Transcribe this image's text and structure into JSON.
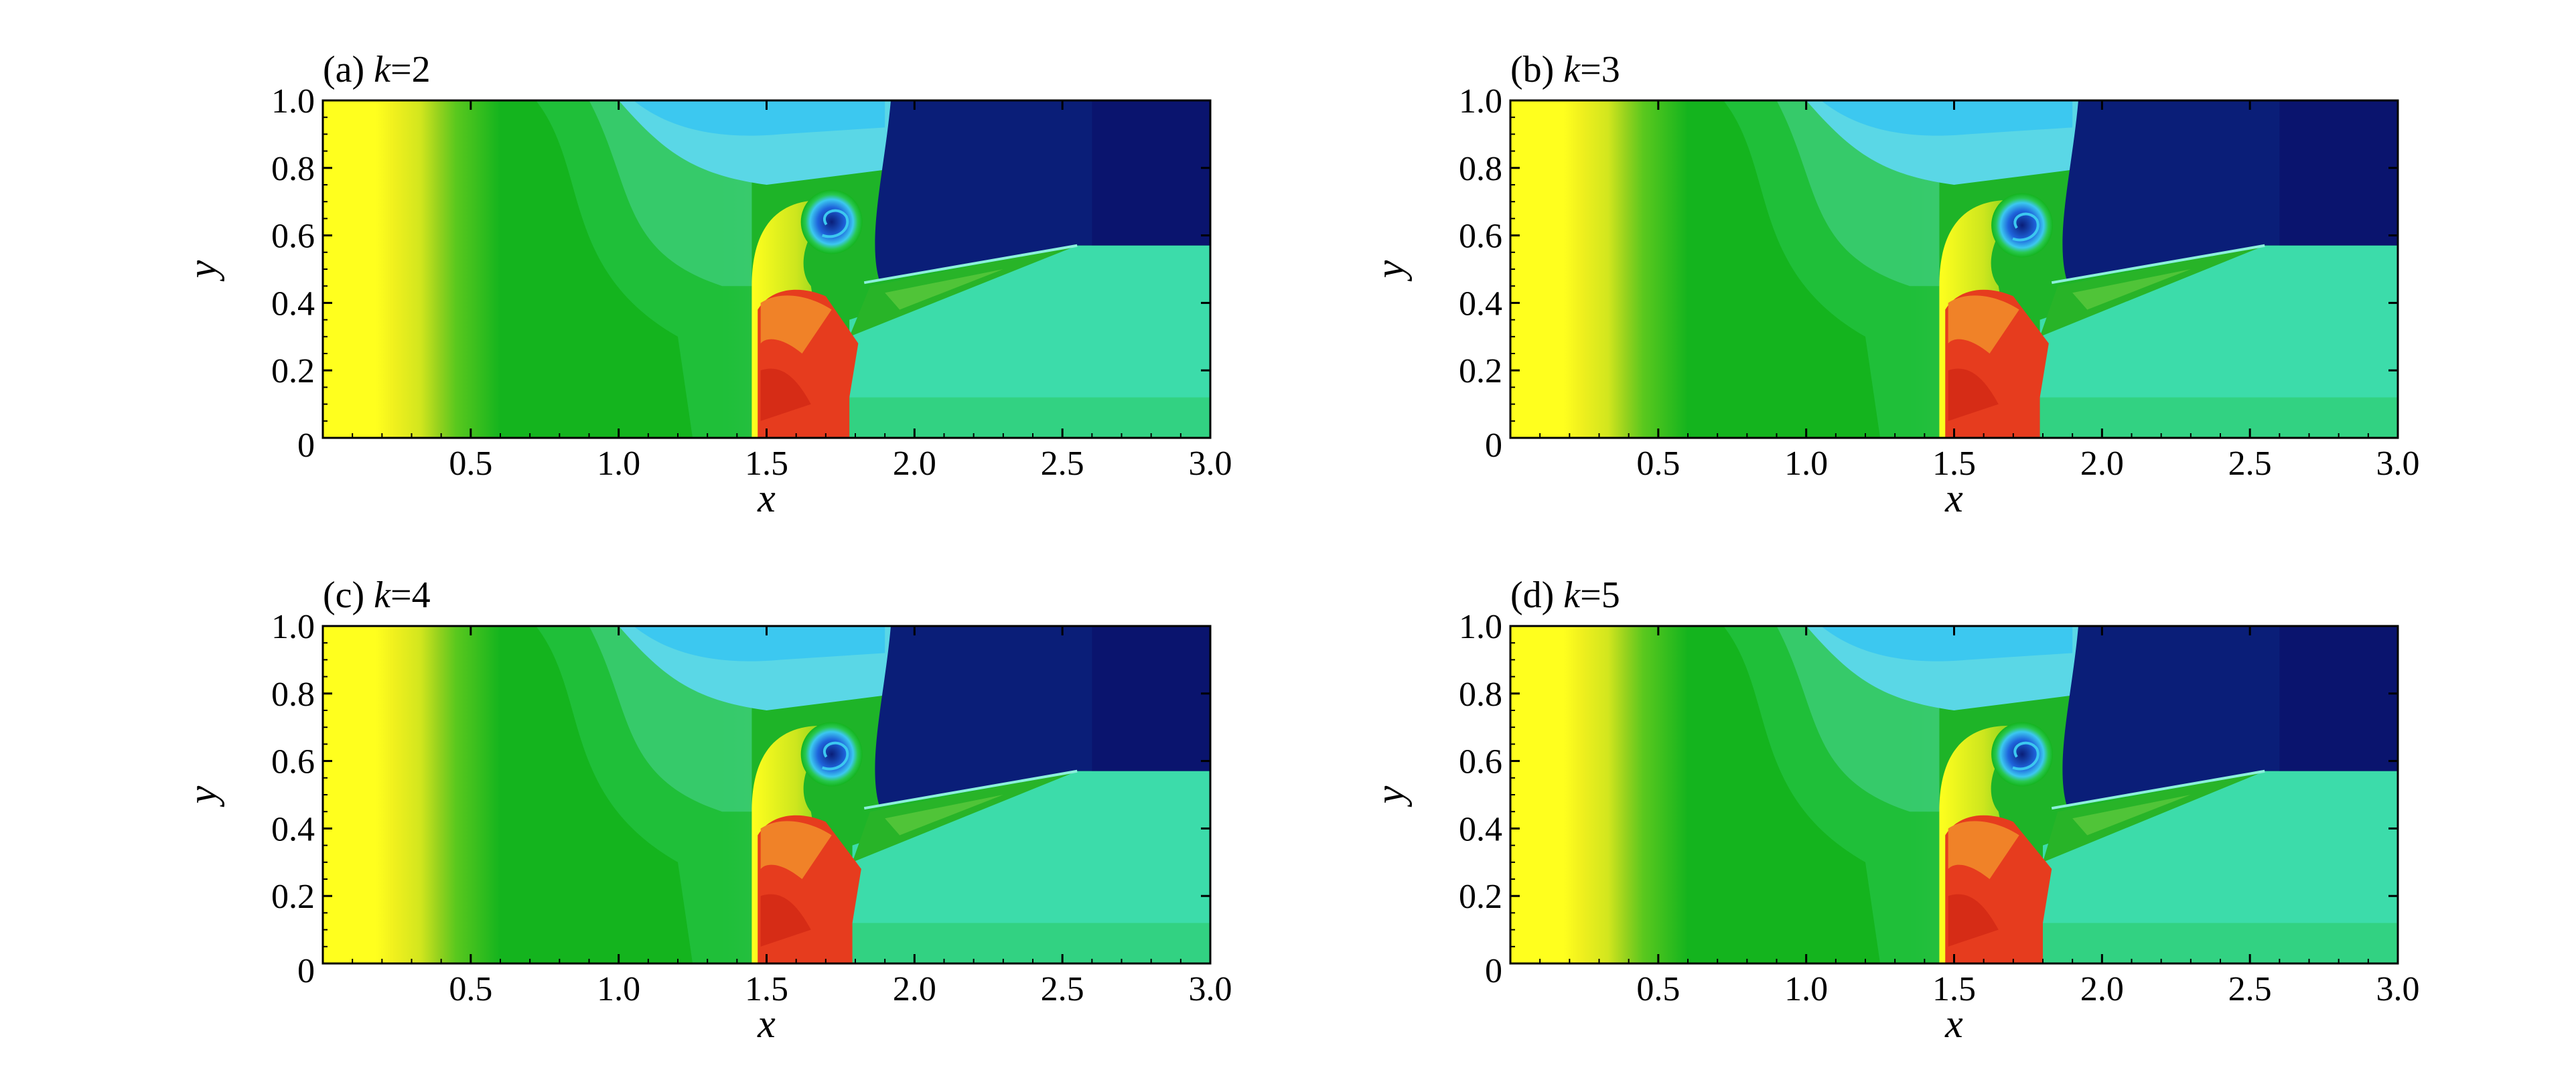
{
  "chart_data": [
    {
      "type": "heatmap",
      "panel_label": "(a)",
      "param_name": "k",
      "param_value": "2",
      "xlabel": "x",
      "ylabel": "y",
      "xlim": [
        0,
        3.0
      ],
      "ylim": [
        0,
        1.0
      ],
      "xticks": [
        "0.5",
        "1.0",
        "1.5",
        "2.0",
        "2.5",
        "3.0"
      ],
      "yticks": [
        "0",
        "0.2",
        "0.4",
        "0.6",
        "0.8",
        "1.0"
      ],
      "features": {
        "shock_x": 1.45,
        "contact_x": 1.78,
        "vortex_center": [
          1.72,
          0.64
        ],
        "slipline_end": [
          2.55,
          0.57
        ]
      }
    },
    {
      "type": "heatmap",
      "panel_label": "(b)",
      "param_name": "k",
      "param_value": "3",
      "xlabel": "x",
      "ylabel": "y",
      "xlim": [
        0,
        3.0
      ],
      "ylim": [
        0,
        1.0
      ],
      "xticks": [
        "0.5",
        "1.0",
        "1.5",
        "2.0",
        "2.5",
        "3.0"
      ],
      "yticks": [
        "0",
        "0.2",
        "0.4",
        "0.6",
        "0.8",
        "1.0"
      ],
      "features": {
        "shock_x": 1.45,
        "contact_x": 1.79,
        "vortex_center": [
          1.73,
          0.63
        ],
        "slipline_end": [
          2.55,
          0.57
        ]
      }
    },
    {
      "type": "heatmap",
      "panel_label": "(c)",
      "param_name": "k",
      "param_value": "4",
      "xlabel": "x",
      "ylabel": "y",
      "xlim": [
        0,
        3.0
      ],
      "ylim": [
        0,
        1.0
      ],
      "xticks": [
        "0.5",
        "1.0",
        "1.5",
        "2.0",
        "2.5",
        "3.0"
      ],
      "yticks": [
        "0",
        "0.2",
        "0.4",
        "0.6",
        "0.8",
        "1.0"
      ],
      "features": {
        "shock_x": 1.45,
        "contact_x": 1.79,
        "vortex_center": [
          1.72,
          0.62
        ],
        "slipline_end": [
          2.55,
          0.57
        ]
      }
    },
    {
      "type": "heatmap",
      "panel_label": "(d)",
      "param_name": "k",
      "param_value": "5",
      "xlabel": "x",
      "ylabel": "y",
      "xlim": [
        0,
        3.0
      ],
      "ylim": [
        0,
        1.0
      ],
      "xticks": [
        "0.5",
        "1.0",
        "1.5",
        "2.0",
        "2.5",
        "3.0"
      ],
      "yticks": [
        "0",
        "0.2",
        "0.4",
        "0.6",
        "0.8",
        "1.0"
      ],
      "features": {
        "shock_x": 1.45,
        "contact_x": 1.8,
        "vortex_center": [
          1.73,
          0.62
        ],
        "slipline_end": [
          2.55,
          0.57
        ]
      }
    }
  ],
  "colors": {
    "yellow": "#ffff1e",
    "yellow_green": "#cde61e",
    "light_green": "#5ac81e",
    "green": "#14b41e",
    "mid_green": "#28c850",
    "teal": "#3cdcaa",
    "cyan": "#5ad7e6",
    "light_blue": "#3cc8f0",
    "blue": "#1e64dc",
    "navy": "#0a1e78",
    "orange": "#f08228",
    "red": "#e63c1e",
    "dark_red": "#d22814"
  }
}
